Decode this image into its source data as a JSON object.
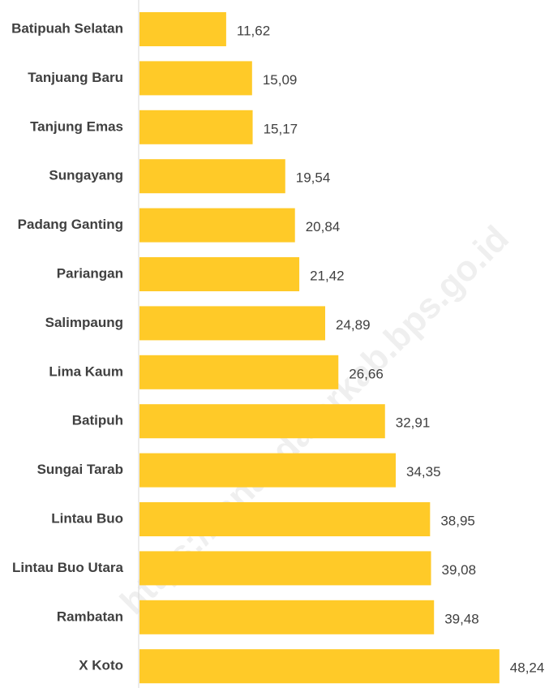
{
  "chart_data": {
    "type": "bar",
    "orientation": "horizontal",
    "color": "#FFCA28",
    "watermark": "https://tanahdatarkab.bps.go.id",
    "categories": [
      "Batipuah Selatan",
      "Tanjuang Baru",
      "Tanjung Emas",
      "Sungayang",
      "Padang Ganting",
      "Pariangan",
      "Salimpaung",
      "Lima Kaum",
      "Batipuh",
      "Sungai Tarab",
      "Lintau Buo",
      "Lintau Buo Utara",
      "Rambatan",
      "X Koto"
    ],
    "values": [
      11.62,
      15.09,
      15.17,
      19.54,
      20.84,
      21.42,
      24.89,
      26.66,
      32.91,
      34.35,
      38.95,
      39.08,
      39.48,
      48.24
    ],
    "value_labels": [
      "11,62",
      "15,09",
      "15,17",
      "19,54",
      "20,84",
      "21,42",
      "24,89",
      "26,66",
      "32,91",
      "34,35",
      "38,95",
      "39,08",
      "39,48",
      "48,24"
    ]
  }
}
